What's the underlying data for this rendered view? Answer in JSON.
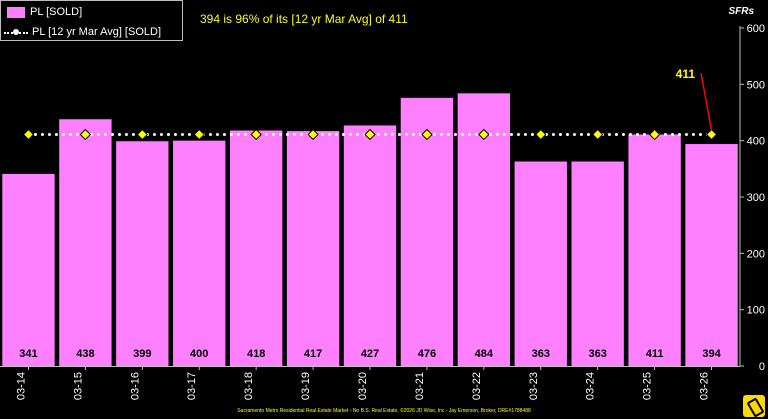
{
  "headline": "394 is 96% of its [12 yr Mar Avg] of 411",
  "unit_label": "SFRs",
  "footer_text": "Sacramento Metro Residential Real Estate Market - No B.S. Real Estate, ©2026 JD Wise, Inc - Jay Emerson, Broker, DRE#1788488",
  "colors": {
    "bar": "#ff80ff",
    "avg_line": "#ffffff",
    "marker": "#ffff00",
    "pointer": "#ff0000"
  },
  "chart_data": {
    "type": "bar",
    "categories": [
      "03-14",
      "03-15",
      "03-16",
      "03-17",
      "03-18",
      "03-19",
      "03-20",
      "03-21",
      "03-22",
      "03-23",
      "03-24",
      "03-25",
      "03-26"
    ],
    "series": [
      {
        "name": "PL [SOLD]",
        "type": "bar",
        "values": [
          341,
          438,
          399,
          400,
          418,
          417,
          427,
          476,
          484,
          363,
          363,
          411,
          394
        ]
      },
      {
        "name": "PL [12 yr Mar Avg] [SOLD]",
        "type": "line",
        "values": [
          411,
          411,
          411,
          411,
          411,
          411,
          411,
          411,
          411,
          411,
          411,
          411,
          411
        ]
      }
    ],
    "annotation": "411",
    "y_ticks": [
      0,
      100,
      200,
      300,
      400,
      500,
      600
    ],
    "ylim": [
      0,
      600
    ],
    "grid": false,
    "legend_position": "top-left",
    "y_axis_side": "right"
  }
}
